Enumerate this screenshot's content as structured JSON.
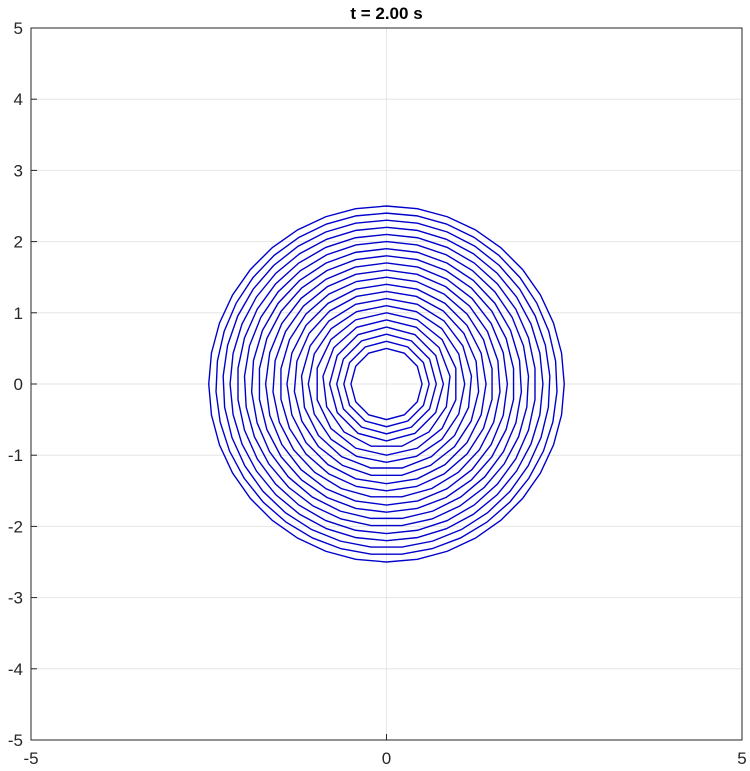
{
  "chart_data": {
    "type": "line",
    "title": "t = 2.00 s",
    "xlabel": "",
    "ylabel": "",
    "xlim": [
      -5,
      5
    ],
    "ylim": [
      -5,
      5
    ],
    "x_ticks": [
      -5,
      0,
      5
    ],
    "y_ticks": [
      -5,
      -4,
      -3,
      -2,
      -1,
      0,
      1,
      2,
      3,
      4,
      5
    ],
    "x_tick_labels": [
      "-5",
      "0",
      "5"
    ],
    "y_tick_labels": [
      "-5",
      "-4",
      "-3",
      "-2",
      "-1",
      "0",
      "1",
      "2",
      "3",
      "4",
      "5"
    ],
    "grid": true,
    "series_color": "#0000cc",
    "series": [
      {
        "shape": "concentric polygon rings",
        "inner_radius": 0.5,
        "outer_radius": 2.5,
        "ring_count": 21,
        "vertices_per_ring": 12
      }
    ]
  }
}
